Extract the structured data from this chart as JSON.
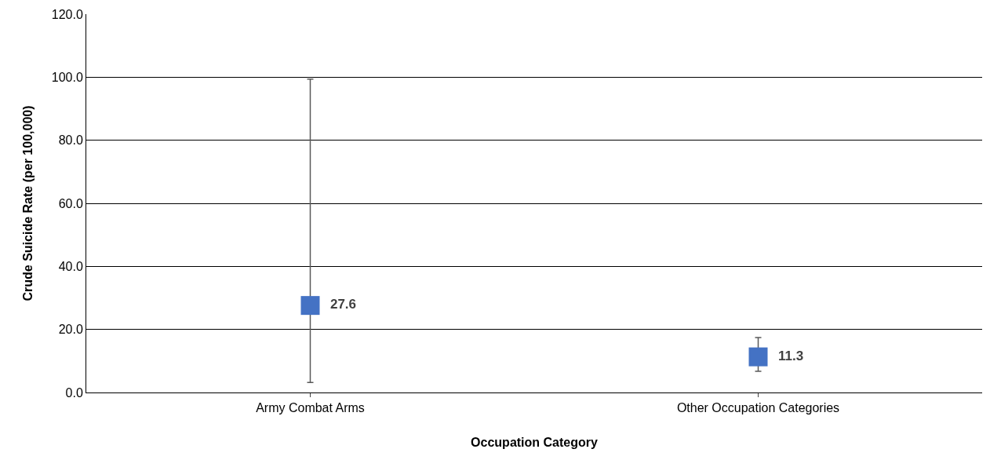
{
  "chart_data": {
    "type": "scatter",
    "xlabel": "Occupation Category",
    "ylabel": "Crude Suicide Rate (per 100,000)",
    "categories": [
      "Army Combat Arms",
      "Other Occupation Categories"
    ],
    "values": [
      27.6,
      11.3
    ],
    "color": "#4472c4",
    "marker": "square",
    "errors": [
      [
        3.2,
        99.4
      ],
      [
        6.7,
        17.4
      ]
    ],
    "data_labels": true,
    "grid": "y",
    "legend": false,
    "ylim": [
      0,
      120
    ],
    "yticks": [
      {
        "value": 0,
        "label": "0.0"
      },
      {
        "value": 20,
        "label": "20.0"
      },
      {
        "value": 40,
        "label": "40.0"
      },
      {
        "value": 60,
        "label": "60.0"
      },
      {
        "value": 80,
        "label": "80.0"
      },
      {
        "value": 100,
        "label": "100.0"
      },
      {
        "value": 120,
        "label": "120.0"
      }
    ]
  }
}
